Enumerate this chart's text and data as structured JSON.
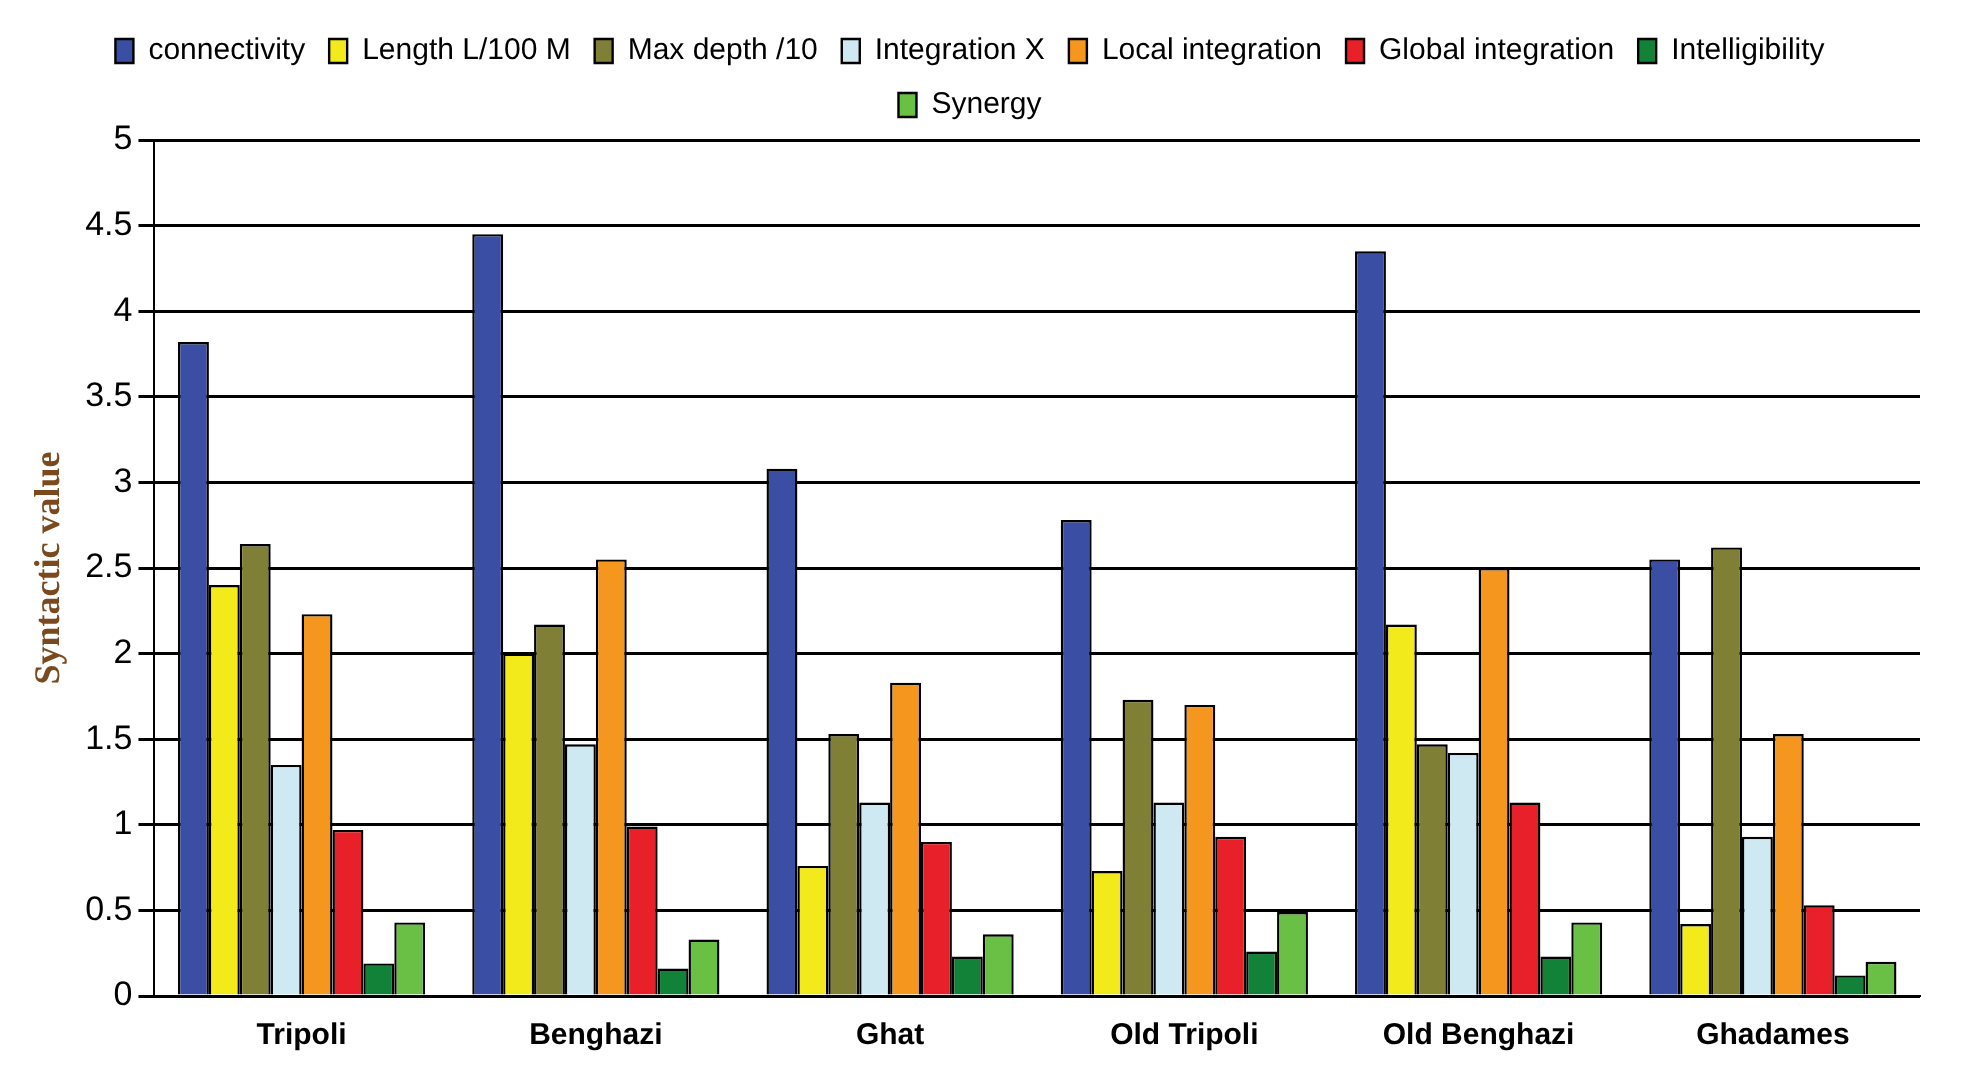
{
  "chart_data": {
    "type": "bar",
    "ylabel": "Syntactic value",
    "categories": [
      "Tripoli",
      "Benghazi",
      "Ghat",
      "Old Tripoli",
      "Old Benghazi",
      "Ghadames"
    ],
    "series": [
      {
        "name": "connectivity",
        "color": "#3a4fa3",
        "values": [
          3.82,
          4.45,
          3.08,
          2.78,
          4.35,
          2.55
        ]
      },
      {
        "name": "Length L/100 M",
        "color": "#f2ea1a",
        "values": [
          2.4,
          2.0,
          0.76,
          0.73,
          2.17,
          0.42
        ]
      },
      {
        "name": "Max depth /10",
        "color": "#7f7f36",
        "values": [
          2.64,
          2.17,
          1.53,
          1.73,
          1.47,
          2.62
        ]
      },
      {
        "name": "Integration X",
        "color": "#cfe9f2",
        "values": [
          1.35,
          1.47,
          1.13,
          1.13,
          1.42,
          0.93
        ]
      },
      {
        "name": "Local integration",
        "color": "#f5961e",
        "values": [
          2.23,
          2.55,
          1.83,
          1.7,
          2.5,
          1.53
        ]
      },
      {
        "name": "Global integration",
        "color": "#e8202a",
        "values": [
          0.97,
          0.99,
          0.9,
          0.93,
          1.13,
          0.53
        ]
      },
      {
        "name": "Intelligibility",
        "color": "#118238",
        "values": [
          0.19,
          0.16,
          0.23,
          0.26,
          0.23,
          0.12
        ]
      },
      {
        "name": "Synergy",
        "color": "#6abf45",
        "values": [
          0.43,
          0.33,
          0.36,
          0.49,
          0.43,
          0.2
        ]
      }
    ],
    "ylim": [
      0,
      5
    ],
    "yticks": [
      0,
      0.5,
      1,
      1.5,
      2,
      2.5,
      3,
      3.5,
      4,
      4.5,
      5
    ],
    "grid": "y",
    "legend": "top"
  }
}
